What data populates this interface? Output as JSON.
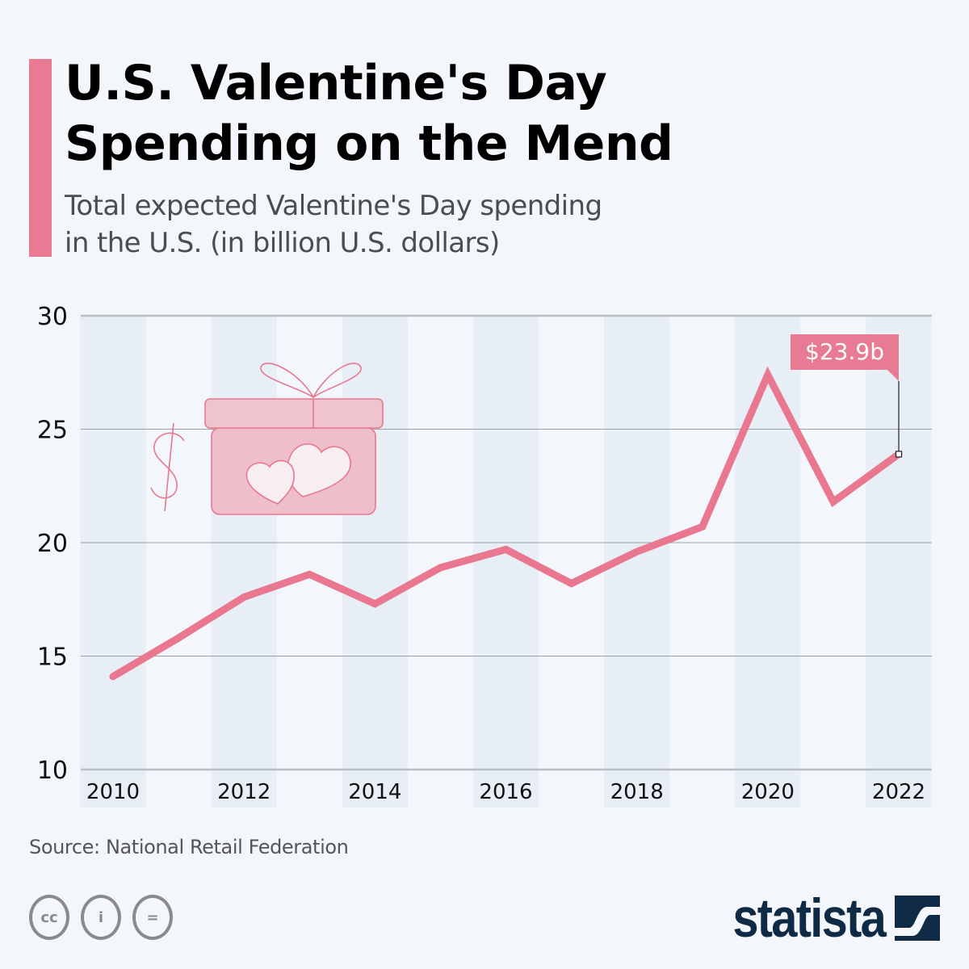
{
  "header": {
    "title_line1": "U.S. Valentine's Day",
    "title_line2": "Spending on the Mend",
    "subtitle_line1": "Total expected Valentine's Day spending",
    "subtitle_line2": "in the U.S. (in billion U.S. dollars)"
  },
  "colors": {
    "accent": "#e97a93",
    "line": "#e8778f",
    "band": "#e8eef5",
    "background": "#f3f7fb",
    "grid": "#9aa0a8",
    "brand": "#0f2a45"
  },
  "chart_data": {
    "type": "line",
    "title": "U.S. Valentine's Day Spending on the Mend",
    "subtitle": "Total expected Valentine's Day spending in the U.S. (in billion U.S. dollars)",
    "xlabel": "",
    "ylabel": "",
    "x": [
      2010,
      2011,
      2012,
      2013,
      2014,
      2015,
      2016,
      2017,
      2018,
      2019,
      2020,
      2021,
      2022
    ],
    "series": [
      {
        "name": "Total expected Valentine's Day spending",
        "values": [
          14.1,
          15.8,
          17.6,
          18.6,
          17.3,
          18.9,
          19.7,
          18.2,
          19.6,
          20.7,
          27.4,
          21.8,
          23.9
        ]
      }
    ],
    "ylim": [
      10,
      30
    ],
    "yticks": [
      "10",
      "15",
      "20",
      "25",
      "30"
    ],
    "xtick_labels": [
      "2010",
      "2012",
      "2014",
      "2016",
      "2018",
      "2020",
      "2022"
    ],
    "grid": true,
    "legend": "none",
    "annotations": [
      {
        "x": 2022,
        "label": "$23.9b"
      }
    ]
  },
  "footer": {
    "source": "Source: National Retail Federation",
    "license_icons": [
      "cc-icon",
      "attribution-icon",
      "no-derivatives-icon"
    ],
    "license_glyphs": [
      "cc",
      "i",
      "="
    ],
    "brand": "statista"
  }
}
